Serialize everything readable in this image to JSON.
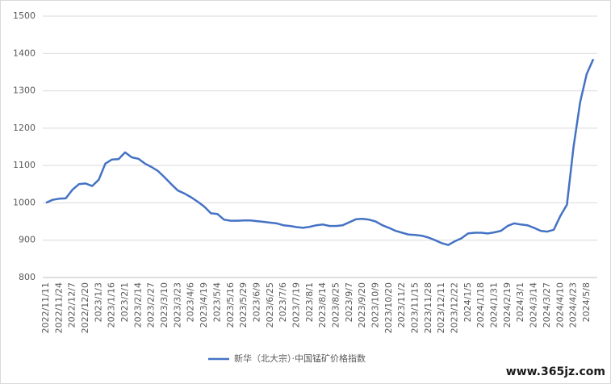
{
  "chart_data": {
    "type": "line",
    "categories": [
      "2022/11/11",
      null,
      "2022/11/24",
      null,
      "2022/12/7",
      null,
      "2022/12/20",
      null,
      "2023/1/3",
      null,
      "2023/1/16",
      null,
      "2023/2/1",
      null,
      "2023/2/14",
      null,
      "2023/2/27",
      null,
      "2023/3/10",
      null,
      "2023/3/23",
      null,
      "2023/4/6",
      null,
      "2023/4/19",
      null,
      "2023/5/4",
      null,
      "2023/5/16",
      null,
      "2023/5/29",
      null,
      "2023/6/9",
      null,
      "2023/6/25",
      null,
      "2023/7/6",
      null,
      "2023/7/19",
      null,
      "2023/8/1",
      null,
      "2023/8/14",
      null,
      "2023/8/25",
      null,
      "2023/9/7",
      null,
      "2023/9/20",
      null,
      "2023/10/9",
      null,
      "2023/10/20",
      null,
      "2023/11/2",
      null,
      "2023/11/15",
      null,
      "2023/11/28",
      null,
      "2023/12/11",
      null,
      "2023/12/22",
      null,
      "2024/1/5",
      null,
      "2024/1/18",
      null,
      "2024/1/31",
      null,
      "2024/2/19",
      null,
      "2024/3/1",
      null,
      "2024/3/14",
      null,
      "2024/3/27",
      null,
      "2024/4/10",
      null,
      "2024/4/23",
      null,
      "2024/5/8",
      null
    ],
    "series": [
      {
        "name": "新华（北大宗）·中国锰矿价格指数",
        "color": "#4472c4",
        "values": [
          1000,
          1008,
          1011,
          1012,
          1035,
          1050,
          1052,
          1045,
          1062,
          1105,
          1116,
          1117,
          1135,
          1122,
          1118,
          1105,
          1096,
          1085,
          1068,
          1050,
          1033,
          1025,
          1015,
          1003,
          990,
          972,
          970,
          955,
          952,
          952,
          953,
          953,
          951,
          949,
          947,
          945,
          940,
          938,
          935,
          933,
          936,
          940,
          942,
          938,
          938,
          940,
          948,
          956,
          957,
          955,
          950,
          940,
          933,
          925,
          920,
          915,
          914,
          912,
          907,
          900,
          892,
          887,
          897,
          905,
          918,
          920,
          920,
          918,
          921,
          925,
          938,
          945,
          942,
          940,
          933,
          925,
          923,
          928,
          965,
          995,
          1150,
          1270,
          1345,
          1385
        ]
      }
    ],
    "ylim": [
      800,
      1500
    ],
    "yticks": [
      800,
      900,
      1000,
      1100,
      1200,
      1300,
      1400,
      1500
    ],
    "grid": true,
    "legend": "bottom",
    "watermark": "www.365jz.com"
  }
}
